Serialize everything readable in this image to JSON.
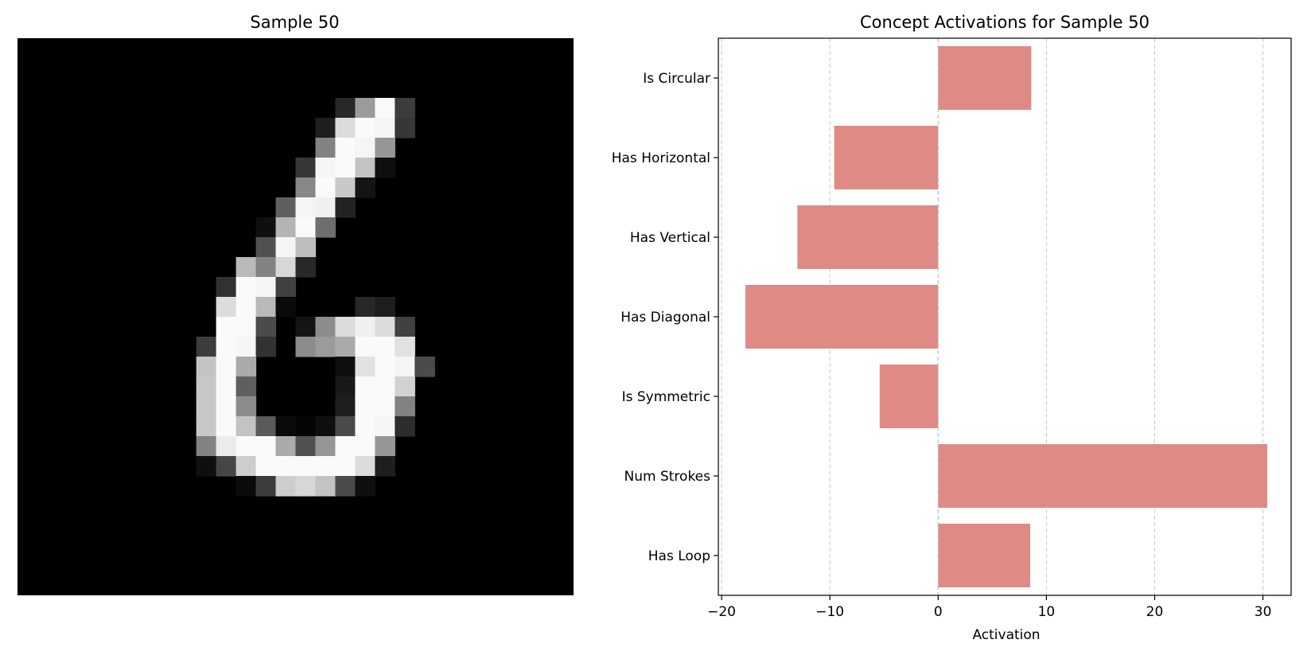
{
  "image_panel": {
    "title": "Sample 50",
    "grid_size": 28,
    "pixels": [
      {
        "r": 3,
        "c": 16,
        "v": 40
      },
      {
        "r": 3,
        "c": 17,
        "v": 155
      },
      {
        "r": 3,
        "c": 18,
        "v": 250
      },
      {
        "r": 3,
        "c": 19,
        "v": 60
      },
      {
        "r": 4,
        "c": 15,
        "v": 30
      },
      {
        "r": 4,
        "c": 16,
        "v": 220
      },
      {
        "r": 4,
        "c": 17,
        "v": 250
      },
      {
        "r": 4,
        "c": 18,
        "v": 245
      },
      {
        "r": 4,
        "c": 19,
        "v": 55
      },
      {
        "r": 5,
        "c": 15,
        "v": 130
      },
      {
        "r": 5,
        "c": 16,
        "v": 250
      },
      {
        "r": 5,
        "c": 17,
        "v": 245
      },
      {
        "r": 5,
        "c": 18,
        "v": 150
      },
      {
        "r": 6,
        "c": 14,
        "v": 55
      },
      {
        "r": 6,
        "c": 15,
        "v": 245
      },
      {
        "r": 6,
        "c": 16,
        "v": 250
      },
      {
        "r": 6,
        "c": 17,
        "v": 195
      },
      {
        "r": 6,
        "c": 18,
        "v": 15
      },
      {
        "r": 7,
        "c": 14,
        "v": 135
      },
      {
        "r": 7,
        "c": 15,
        "v": 250
      },
      {
        "r": 7,
        "c": 16,
        "v": 200
      },
      {
        "r": 7,
        "c": 17,
        "v": 20
      },
      {
        "r": 8,
        "c": 13,
        "v": 95
      },
      {
        "r": 8,
        "c": 14,
        "v": 245
      },
      {
        "r": 8,
        "c": 15,
        "v": 240
      },
      {
        "r": 8,
        "c": 16,
        "v": 35
      },
      {
        "r": 9,
        "c": 12,
        "v": 15
      },
      {
        "r": 9,
        "c": 13,
        "v": 180
      },
      {
        "r": 9,
        "c": 14,
        "v": 250
      },
      {
        "r": 9,
        "c": 15,
        "v": 110
      },
      {
        "r": 10,
        "c": 12,
        "v": 80
      },
      {
        "r": 10,
        "c": 13,
        "v": 245
      },
      {
        "r": 10,
        "c": 14,
        "v": 190
      },
      {
        "r": 11,
        "c": 11,
        "v": 185
      },
      {
        "r": 11,
        "c": 12,
        "v": 130
      },
      {
        "r": 11,
        "c": 13,
        "v": 215
      },
      {
        "r": 11,
        "c": 14,
        "v": 40
      },
      {
        "r": 12,
        "c": 10,
        "v": 50
      },
      {
        "r": 12,
        "c": 11,
        "v": 250
      },
      {
        "r": 12,
        "c": 12,
        "v": 245
      },
      {
        "r": 12,
        "c": 13,
        "v": 65
      },
      {
        "r": 13,
        "c": 10,
        "v": 220
      },
      {
        "r": 13,
        "c": 11,
        "v": 250
      },
      {
        "r": 13,
        "c": 12,
        "v": 185
      },
      {
        "r": 13,
        "c": 13,
        "v": 10
      },
      {
        "r": 13,
        "c": 17,
        "v": 40
      },
      {
        "r": 13,
        "c": 18,
        "v": 30
      },
      {
        "r": 14,
        "c": 10,
        "v": 250
      },
      {
        "r": 14,
        "c": 11,
        "v": 250
      },
      {
        "r": 14,
        "c": 12,
        "v": 75
      },
      {
        "r": 14,
        "c": 14,
        "v": 20
      },
      {
        "r": 14,
        "c": 15,
        "v": 140
      },
      {
        "r": 14,
        "c": 16,
        "v": 220
      },
      {
        "r": 14,
        "c": 17,
        "v": 240
      },
      {
        "r": 14,
        "c": 18,
        "v": 220
      },
      {
        "r": 14,
        "c": 19,
        "v": 65
      },
      {
        "r": 15,
        "c": 9,
        "v": 60
      },
      {
        "r": 15,
        "c": 10,
        "v": 250
      },
      {
        "r": 15,
        "c": 11,
        "v": 245
      },
      {
        "r": 15,
        "c": 12,
        "v": 50
      },
      {
        "r": 15,
        "c": 14,
        "v": 140
      },
      {
        "r": 15,
        "c": 15,
        "v": 155
      },
      {
        "r": 15,
        "c": 16,
        "v": 170
      },
      {
        "r": 15,
        "c": 17,
        "v": 250
      },
      {
        "r": 15,
        "c": 18,
        "v": 250
      },
      {
        "r": 15,
        "c": 19,
        "v": 225
      },
      {
        "r": 16,
        "c": 9,
        "v": 195
      },
      {
        "r": 16,
        "c": 10,
        "v": 250
      },
      {
        "r": 16,
        "c": 11,
        "v": 170
      },
      {
        "r": 16,
        "c": 16,
        "v": 15
      },
      {
        "r": 16,
        "c": 17,
        "v": 225
      },
      {
        "r": 16,
        "c": 18,
        "v": 250
      },
      {
        "r": 16,
        "c": 19,
        "v": 245
      },
      {
        "r": 16,
        "c": 20,
        "v": 75
      },
      {
        "r": 17,
        "c": 9,
        "v": 200
      },
      {
        "r": 17,
        "c": 10,
        "v": 250
      },
      {
        "r": 17,
        "c": 11,
        "v": 95
      },
      {
        "r": 17,
        "c": 16,
        "v": 25
      },
      {
        "r": 17,
        "c": 17,
        "v": 250
      },
      {
        "r": 17,
        "c": 18,
        "v": 250
      },
      {
        "r": 17,
        "c": 19,
        "v": 210
      },
      {
        "r": 18,
        "c": 9,
        "v": 200
      },
      {
        "r": 18,
        "c": 10,
        "v": 250
      },
      {
        "r": 18,
        "c": 11,
        "v": 140
      },
      {
        "r": 18,
        "c": 16,
        "v": 30
      },
      {
        "r": 18,
        "c": 17,
        "v": 250
      },
      {
        "r": 18,
        "c": 18,
        "v": 250
      },
      {
        "r": 18,
        "c": 19,
        "v": 130
      },
      {
        "r": 19,
        "c": 9,
        "v": 200
      },
      {
        "r": 19,
        "c": 10,
        "v": 250
      },
      {
        "r": 19,
        "c": 11,
        "v": 195
      },
      {
        "r": 19,
        "c": 12,
        "v": 90
      },
      {
        "r": 19,
        "c": 13,
        "v": 10
      },
      {
        "r": 19,
        "c": 14,
        "v": 5
      },
      {
        "r": 19,
        "c": 15,
        "v": 15
      },
      {
        "r": 19,
        "c": 16,
        "v": 75
      },
      {
        "r": 19,
        "c": 17,
        "v": 250
      },
      {
        "r": 19,
        "c": 18,
        "v": 245
      },
      {
        "r": 19,
        "c": 19,
        "v": 45
      },
      {
        "r": 20,
        "c": 9,
        "v": 130
      },
      {
        "r": 20,
        "c": 10,
        "v": 235
      },
      {
        "r": 20,
        "c": 11,
        "v": 250
      },
      {
        "r": 20,
        "c": 12,
        "v": 250
      },
      {
        "r": 20,
        "c": 13,
        "v": 170
      },
      {
        "r": 20,
        "c": 14,
        "v": 80
      },
      {
        "r": 20,
        "c": 15,
        "v": 150
      },
      {
        "r": 20,
        "c": 16,
        "v": 250
      },
      {
        "r": 20,
        "c": 17,
        "v": 250
      },
      {
        "r": 20,
        "c": 18,
        "v": 150
      },
      {
        "r": 21,
        "c": 9,
        "v": 15
      },
      {
        "r": 21,
        "c": 10,
        "v": 70
      },
      {
        "r": 21,
        "c": 11,
        "v": 205
      },
      {
        "r": 21,
        "c": 12,
        "v": 250
      },
      {
        "r": 21,
        "c": 13,
        "v": 250
      },
      {
        "r": 21,
        "c": 14,
        "v": 250
      },
      {
        "r": 21,
        "c": 15,
        "v": 250
      },
      {
        "r": 21,
        "c": 16,
        "v": 250
      },
      {
        "r": 21,
        "c": 17,
        "v": 220
      },
      {
        "r": 21,
        "c": 18,
        "v": 30
      },
      {
        "r": 22,
        "c": 11,
        "v": 10
      },
      {
        "r": 22,
        "c": 12,
        "v": 60
      },
      {
        "r": 22,
        "c": 13,
        "v": 205
      },
      {
        "r": 22,
        "c": 14,
        "v": 215
      },
      {
        "r": 22,
        "c": 15,
        "v": 195
      },
      {
        "r": 22,
        "c": 16,
        "v": 75
      },
      {
        "r": 22,
        "c": 17,
        "v": 15
      }
    ]
  },
  "chart_data": {
    "type": "bar",
    "orientation": "horizontal",
    "title": "Concept Activations for Sample 50",
    "xlabel": "Activation",
    "ylabel": "",
    "categories": [
      "Is Circular",
      "Has Horizontal",
      "Has Vertical",
      "Has Diagonal",
      "Is Symmetric",
      "Num Strokes",
      "Has Loop"
    ],
    "values": [
      8.6,
      -9.6,
      -13.0,
      -17.8,
      -5.4,
      30.4,
      8.5
    ],
    "xlim": [
      -20.3,
      32.6
    ],
    "xticks": [
      -20,
      -10,
      0,
      10,
      20,
      30
    ],
    "xtick_labels": [
      "−20",
      "−10",
      "0",
      "10",
      "20",
      "30"
    ],
    "grid": "vertical dashed",
    "bar_color": "#e08a85"
  }
}
